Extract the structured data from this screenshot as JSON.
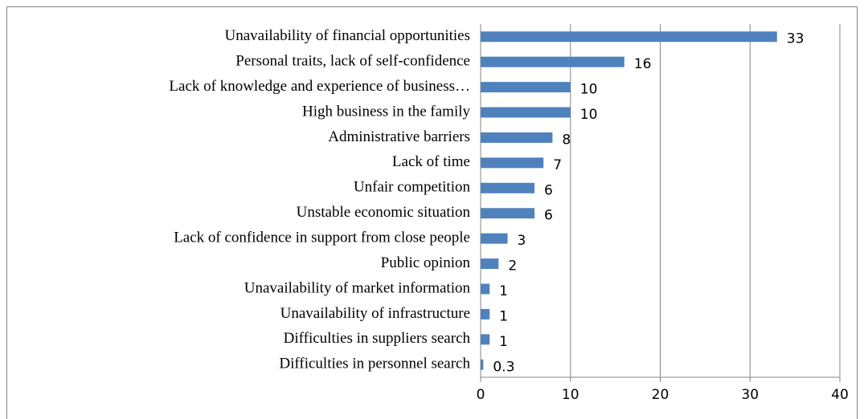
{
  "chart_data": {
    "type": "bar",
    "orientation": "horizontal",
    "categories": [
      "Unavailability of financial opportunities",
      "Personal traits, lack of self-confidence",
      "Lack of knowledge and experience of business…",
      "High business in the family",
      "Administrative barriers",
      "Lack of time",
      "Unfair competition",
      "Unstable economic situation",
      "Lack of confidence in support from close people",
      "Public opinion",
      "Unavailability of market information",
      "Unavailability of infrastructure",
      "Difficulties in suppliers search",
      "Difficulties in personnel search"
    ],
    "values": [
      33,
      16,
      10,
      10,
      8,
      7,
      6,
      6,
      3,
      2,
      1,
      1,
      1,
      0.3
    ],
    "color": "#4f81bd",
    "xlim": [
      0,
      40
    ],
    "xticks": [
      0,
      10,
      20,
      30,
      40
    ],
    "grid": true
  }
}
